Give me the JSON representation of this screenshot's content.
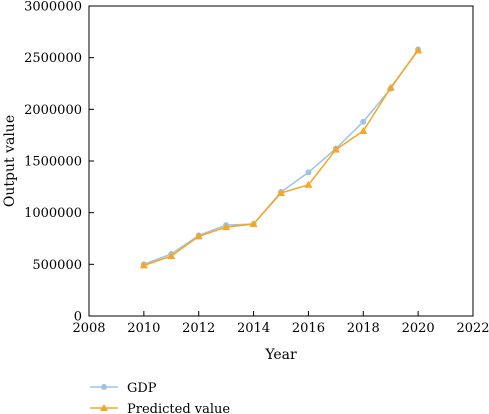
{
  "chart_data": {
    "type": "line",
    "xlabel": "Year",
    "ylabel": "Output value",
    "xlim": [
      2008,
      2022
    ],
    "ylim": [
      0,
      3000000
    ],
    "xticks": [
      2008,
      2010,
      2012,
      2014,
      2016,
      2018,
      2020,
      2022
    ],
    "yticks": [
      0,
      500000,
      1000000,
      1500000,
      2000000,
      2500000,
      3000000
    ],
    "x": [
      2010,
      2011,
      2012,
      2013,
      2014,
      2015,
      2016,
      2017,
      2018,
      2019,
      2020
    ],
    "series": [
      {
        "name": "GDP",
        "color": "#9dc3e6",
        "marker": "circle",
        "values": [
          500000,
          600000,
          780000,
          880000,
          890000,
          1200000,
          1390000,
          1620000,
          1880000,
          2200000,
          2580000
        ]
      },
      {
        "name": "Predicted value",
        "color": "#f5a623",
        "marker": "triangle",
        "values": [
          490000,
          580000,
          770000,
          860000,
          890000,
          1190000,
          1270000,
          1610000,
          1790000,
          2210000,
          2570000
        ]
      }
    ],
    "legend_position": "bottom-left",
    "grid": false
  }
}
